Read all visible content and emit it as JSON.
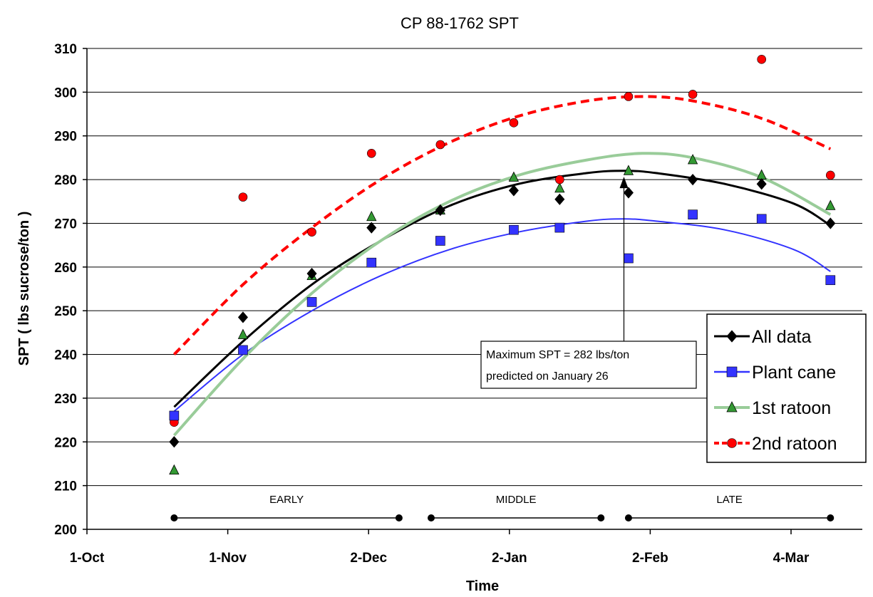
{
  "chart_data": {
    "type": "scatter",
    "title": "CP 88-1762 SPT",
    "xlabel": "Time",
    "ylabel": "SPT ( lbs sucrose/ton )",
    "ylim": [
      200,
      310
    ],
    "y_ticks": [
      200,
      210,
      220,
      230,
      240,
      250,
      260,
      270,
      280,
      290,
      300,
      310
    ],
    "x_ticks": [
      "1-Oct",
      "1-Nov",
      "2-Dec",
      "2-Jan",
      "2-Feb",
      "4-Mar"
    ],
    "grid": "horizontal",
    "legend_position": "right",
    "series": [
      {
        "name": "All data",
        "color": "#000000",
        "marker": "diamond",
        "line_style": "solid",
        "points": [
          {
            "x": "2023-10-20",
            "y": 220
          },
          {
            "x": "2023-11-04",
            "y": 248.5
          },
          {
            "x": "2023-11-19",
            "y": 258.5
          },
          {
            "x": "2023-12-02",
            "y": 269
          },
          {
            "x": "2023-12-17",
            "y": 273
          },
          {
            "x": "2024-01-02",
            "y": 277.5
          },
          {
            "x": "2024-01-12",
            "y": 275.5
          },
          {
            "x": "2024-01-27",
            "y": 277
          },
          {
            "x": "2024-02-10",
            "y": 280
          },
          {
            "x": "2024-02-25",
            "y": 279
          },
          {
            "x": "2024-03-11",
            "y": 270
          }
        ],
        "trend": [
          {
            "x": "2023-10-20",
            "y": 228
          },
          {
            "x": "2023-11-04",
            "y": 243
          },
          {
            "x": "2023-11-19",
            "y": 256
          },
          {
            "x": "2023-12-04",
            "y": 266
          },
          {
            "x": "2023-12-19",
            "y": 274
          },
          {
            "x": "2024-01-03",
            "y": 279
          },
          {
            "x": "2024-01-18",
            "y": 281.5
          },
          {
            "x": "2024-01-26",
            "y": 282
          },
          {
            "x": "2024-02-02",
            "y": 281.5
          },
          {
            "x": "2024-02-17",
            "y": 279
          },
          {
            "x": "2024-03-03",
            "y": 274.5
          },
          {
            "x": "2024-03-11",
            "y": 269.5
          }
        ]
      },
      {
        "name": "Plant cane",
        "color": "#3333ff",
        "marker": "square",
        "line_style": "solid",
        "points": [
          {
            "x": "2023-10-20",
            "y": 226
          },
          {
            "x": "2023-11-04",
            "y": 241
          },
          {
            "x": "2023-11-19",
            "y": 252
          },
          {
            "x": "2023-12-02",
            "y": 261
          },
          {
            "x": "2023-12-17",
            "y": 266
          },
          {
            "x": "2024-01-02",
            "y": 268.5
          },
          {
            "x": "2024-01-12",
            "y": 269
          },
          {
            "x": "2024-01-27",
            "y": 262
          },
          {
            "x": "2024-02-10",
            "y": 272
          },
          {
            "x": "2024-02-25",
            "y": 271
          },
          {
            "x": "2024-03-11",
            "y": 257
          }
        ],
        "trend": [
          {
            "x": "2023-10-20",
            "y": 227
          },
          {
            "x": "2023-11-04",
            "y": 240
          },
          {
            "x": "2023-11-19",
            "y": 250
          },
          {
            "x": "2023-12-04",
            "y": 258
          },
          {
            "x": "2023-12-19",
            "y": 264
          },
          {
            "x": "2024-01-03",
            "y": 268
          },
          {
            "x": "2024-01-18",
            "y": 270.5
          },
          {
            "x": "2024-01-26",
            "y": 271
          },
          {
            "x": "2024-02-02",
            "y": 270.5
          },
          {
            "x": "2024-02-17",
            "y": 268.5
          },
          {
            "x": "2024-03-03",
            "y": 264
          },
          {
            "x": "2024-03-11",
            "y": 259
          }
        ]
      },
      {
        "name": "1st ratoon",
        "color": "#339933",
        "line_color": "#99cc99",
        "marker": "triangle",
        "line_style": "solid",
        "points": [
          {
            "x": "2023-10-20",
            "y": 213.5
          },
          {
            "x": "2023-11-04",
            "y": 244.5
          },
          {
            "x": "2023-11-19",
            "y": 258
          },
          {
            "x": "2023-12-02",
            "y": 271.5
          },
          {
            "x": "2023-12-17",
            "y": 273
          },
          {
            "x": "2024-01-02",
            "y": 280.5
          },
          {
            "x": "2024-01-12",
            "y": 278
          },
          {
            "x": "2024-01-27",
            "y": 282
          },
          {
            "x": "2024-02-10",
            "y": 284.5
          },
          {
            "x": "2024-02-25",
            "y": 281
          },
          {
            "x": "2024-03-11",
            "y": 274
          }
        ],
        "trend": [
          {
            "x": "2023-10-20",
            "y": 221.5
          },
          {
            "x": "2023-11-04",
            "y": 239
          },
          {
            "x": "2023-11-19",
            "y": 254
          },
          {
            "x": "2023-12-04",
            "y": 266
          },
          {
            "x": "2023-12-19",
            "y": 275
          },
          {
            "x": "2024-01-03",
            "y": 281
          },
          {
            "x": "2024-01-18",
            "y": 284.5
          },
          {
            "x": "2024-01-30",
            "y": 286
          },
          {
            "x": "2024-02-10",
            "y": 285
          },
          {
            "x": "2024-02-25",
            "y": 280.5
          },
          {
            "x": "2024-03-11",
            "y": 272
          }
        ]
      },
      {
        "name": "2nd ratoon",
        "color": "#ff0000",
        "marker": "circle",
        "line_style": "dashed",
        "points": [
          {
            "x": "2023-10-20",
            "y": 224.5
          },
          {
            "x": "2023-11-04",
            "y": 276
          },
          {
            "x": "2023-11-19",
            "y": 268
          },
          {
            "x": "2023-12-02",
            "y": 286
          },
          {
            "x": "2023-12-17",
            "y": 288
          },
          {
            "x": "2024-01-02",
            "y": 293
          },
          {
            "x": "2024-01-12",
            "y": 280
          },
          {
            "x": "2024-01-27",
            "y": 299
          },
          {
            "x": "2024-02-10",
            "y": 299.5
          },
          {
            "x": "2024-02-25",
            "y": 307.5
          },
          {
            "x": "2024-03-11",
            "y": 281
          }
        ],
        "trend": [
          {
            "x": "2023-10-20",
            "y": 240
          },
          {
            "x": "2023-11-04",
            "y": 256
          },
          {
            "x": "2023-11-19",
            "y": 269
          },
          {
            "x": "2023-12-04",
            "y": 280
          },
          {
            "x": "2023-12-19",
            "y": 288.5
          },
          {
            "x": "2024-01-03",
            "y": 294.5
          },
          {
            "x": "2024-01-18",
            "y": 298
          },
          {
            "x": "2024-01-30",
            "y": 299
          },
          {
            "x": "2024-02-10",
            "y": 298
          },
          {
            "x": "2024-02-25",
            "y": 294
          },
          {
            "x": "2024-03-11",
            "y": 287
          }
        ]
      }
    ],
    "annotation": {
      "text_line1": "Maximum SPT = 282 lbs/ton",
      "text_line2": "predicted on January 26",
      "x": "2024-01-26",
      "y": 280
    },
    "seasons": [
      {
        "label": "EARLY",
        "start": "2023-10-20",
        "end": "2023-12-08"
      },
      {
        "label": "MIDDLE",
        "start": "2023-12-15",
        "end": "2024-01-21"
      },
      {
        "label": "LATE",
        "start": "2024-01-27",
        "end": "2024-03-11"
      }
    ],
    "x_range": [
      "2023-10-01",
      "2024-03-18"
    ]
  }
}
